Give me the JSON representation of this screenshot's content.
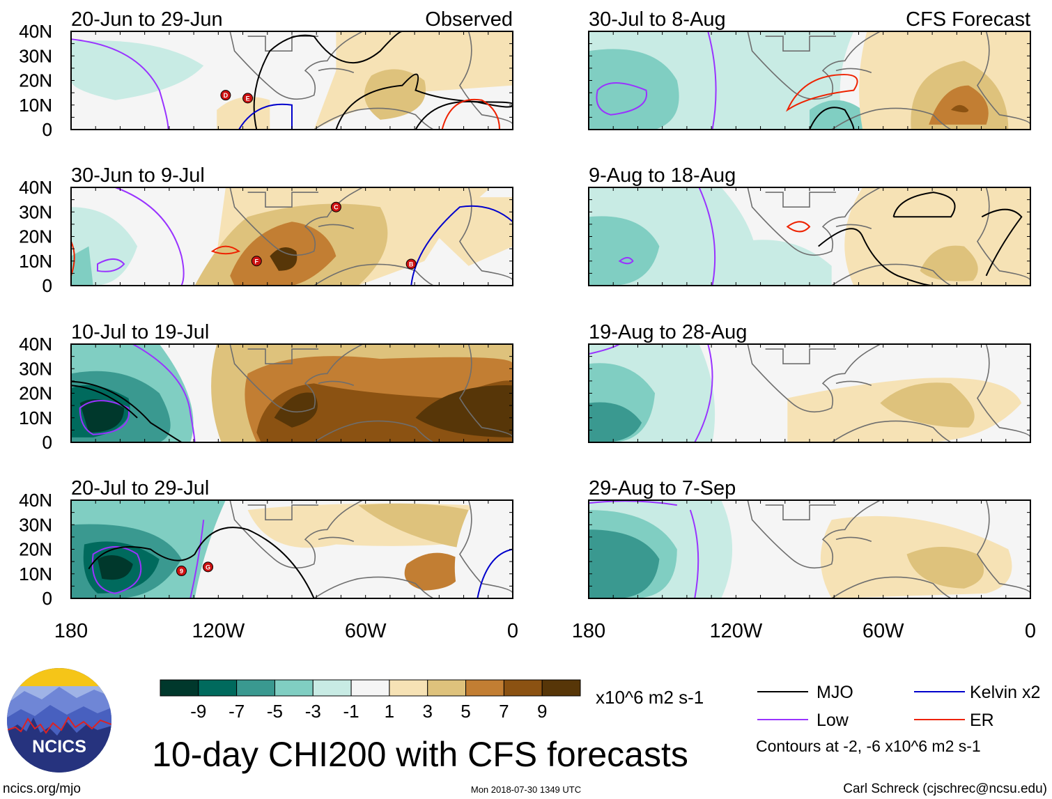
{
  "chart_data": {
    "type": "heatmap",
    "title": "10-day CHI200 with CFS forecasts",
    "colorbar": {
      "unit_label": "x10^6 m2 s-1",
      "tick_labels": [
        "-9",
        "-7",
        "-5",
        "-3",
        "-1",
        "1",
        "3",
        "5",
        "7",
        "9"
      ],
      "colors": [
        "#00382c",
        "#006a5d",
        "#3a9990",
        "#80cec2",
        "#c8ebe4",
        "#f5f5f5",
        "#f6e2b5",
        "#dec27c",
        "#c27e33",
        "#8b5212",
        "#573608"
      ]
    },
    "contour_legend": {
      "items": [
        {
          "label": "MJO",
          "color": "#000000"
        },
        {
          "label": "Kelvin x2",
          "color": "#0000cc"
        },
        {
          "label": "Low",
          "color": "#9933ff"
        },
        {
          "label": "ER",
          "color": "#ee2200"
        }
      ],
      "note": "Contours at -2, -6 x10^6 m2 s-1"
    },
    "x_axis": {
      "tick_labels": [
        "180",
        "120W",
        "60W",
        "0"
      ],
      "range_deg_east": [
        -180,
        0
      ]
    },
    "y_axis": {
      "tick_labels": [
        "40N",
        "30N",
        "20N",
        "10N",
        "0"
      ],
      "range_deg_north": [
        0,
        40
      ]
    },
    "column_labels": {
      "left": "Observed",
      "right": "CFS Forecast"
    },
    "panels": [
      {
        "column": "left",
        "row": 0,
        "period": "20-Jun to 29-Jun",
        "storms": [
          "D",
          "E"
        ]
      },
      {
        "column": "left",
        "row": 1,
        "period": "30-Jun to 9-Jul",
        "storms": [
          "F",
          "C",
          "B"
        ]
      },
      {
        "column": "left",
        "row": 2,
        "period": "10-Jul to 19-Jul",
        "storms": []
      },
      {
        "column": "left",
        "row": 3,
        "period": "20-Jul to 29-Jul",
        "storms": [
          "9",
          "G"
        ]
      },
      {
        "column": "right",
        "row": 0,
        "period": "30-Jul to 8-Aug",
        "storms": []
      },
      {
        "column": "right",
        "row": 1,
        "period": "9-Aug to 18-Aug",
        "storms": []
      },
      {
        "column": "right",
        "row": 2,
        "period": "19-Aug to 28-Aug",
        "storms": []
      },
      {
        "column": "right",
        "row": 3,
        "period": "29-Aug to 7-Sep",
        "storms": []
      }
    ]
  },
  "footer": {
    "logo_text": "NCICS",
    "website": "ncics.org/mjo",
    "timestamp": "Mon 2018-07-30 1349 UTC",
    "author": "Carl Schreck (cjschrec@ncsu.edu)"
  }
}
